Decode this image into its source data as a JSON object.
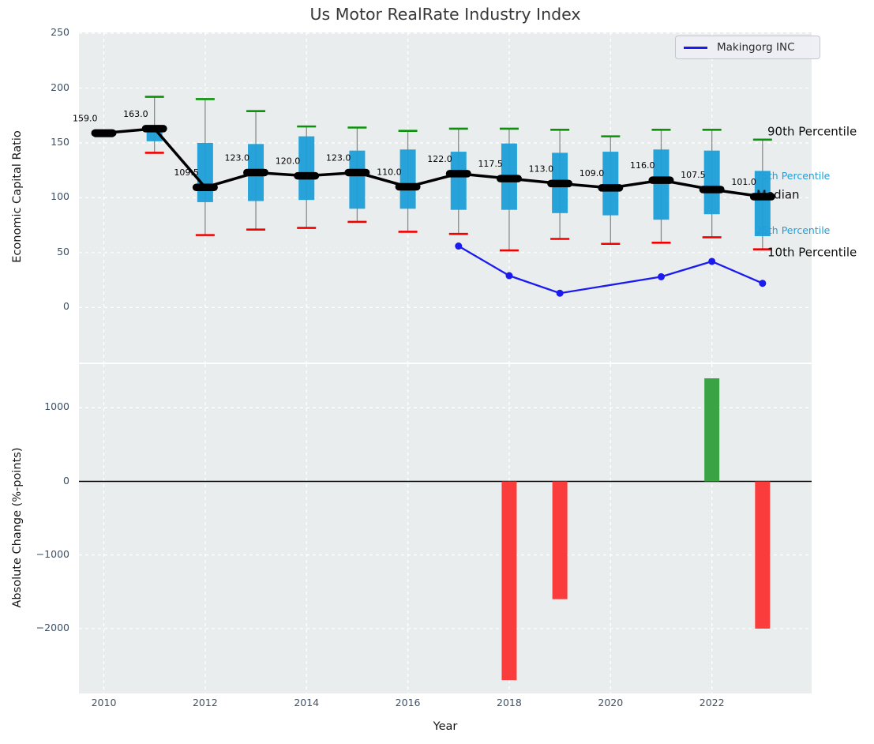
{
  "figure": {
    "title": "Us Motor RealRate Industry Index",
    "xlabel": "Year"
  },
  "legend": {
    "label": "Makingorg INC",
    "line_color": "#1b1bf0",
    "position": "upper right"
  },
  "colors": {
    "box_fill": "#1f9fd8",
    "whisker": "#8a8a8a",
    "cap_90th": "#0a930a",
    "cap_10th": "#f10000",
    "median_line": "#000000",
    "company_line": "#1b1bf0",
    "bar_negative": "#fa3c3c",
    "bar_positive": "#3aa344",
    "panel_bg": "#eaedee",
    "tick_text": "#3f5165",
    "annotation_cyan": "#1f9fd8"
  },
  "chart_data": [
    {
      "type": "boxplot",
      "title": "Us Motor RealRate Industry Index",
      "ylabel": "Economic Capital Ratio",
      "ylim": [
        -51,
        251
      ],
      "yticks": [
        0,
        50,
        100,
        150,
        200,
        250
      ],
      "grid": true,
      "years": [
        2010,
        2011,
        2012,
        2013,
        2014,
        2015,
        2016,
        2017,
        2018,
        2019,
        2020,
        2021,
        2022,
        2023
      ],
      "p90": [
        161.5,
        192,
        190,
        179,
        165,
        164,
        161,
        163,
        163,
        162,
        156,
        162,
        162,
        153
      ],
      "p75": [
        160.5,
        164,
        150,
        149,
        156,
        143,
        144,
        142,
        149.5,
        141,
        142,
        144,
        143,
        124.5
      ],
      "median": [
        159,
        163,
        109.5,
        123,
        120,
        123,
        110,
        122,
        117.5,
        113,
        109,
        116,
        107.5,
        101
      ],
      "p25": [
        157,
        151.5,
        96,
        97,
        98,
        90,
        90,
        89,
        89,
        86,
        84,
        80,
        85,
        65
      ],
      "p10": [
        156,
        141,
        66,
        71,
        72.5,
        78,
        69,
        67,
        52,
        62.5,
        58,
        59,
        64,
        53
      ],
      "median_labels": [
        "159.0",
        "163.0",
        "109.5",
        "123.0",
        "120.0",
        "123.0",
        "110.0",
        "122.0",
        "117.5",
        "113.0",
        "109.0",
        "116.0",
        "107.5",
        "101.0"
      ],
      "annotations": {
        "p90": "90th Percentile",
        "p75": "75th Percentile",
        "median": "Median",
        "p25": "25th Percentile",
        "p10": "10th Percentile"
      },
      "series": [
        {
          "name": "Makingorg INC",
          "x": [
            2017,
            2018,
            2019,
            2021,
            2022,
            2023
          ],
          "values": [
            56,
            29,
            13,
            28,
            42,
            22
          ]
        }
      ]
    },
    {
      "type": "bar",
      "ylabel": "Absolute Change (%-points)",
      "xlabel": "Year",
      "ylim": [
        -2880,
        1593
      ],
      "yticks": [
        1000,
        0,
        -1000,
        -2000
      ],
      "xticks": [
        2010,
        2012,
        2014,
        2016,
        2018,
        2020,
        2022
      ],
      "grid": true,
      "zero_line": true,
      "x": [
        2018,
        2019,
        2022,
        2023
      ],
      "values": [
        -2700,
        -1600,
        1400,
        -2000
      ]
    }
  ]
}
